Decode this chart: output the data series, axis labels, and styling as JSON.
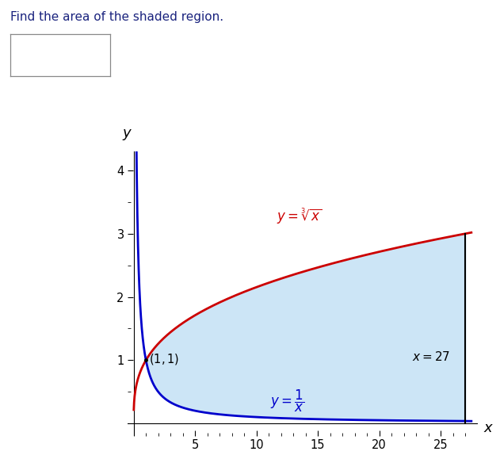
{
  "title": "Find the area of the shaded region.",
  "xlabel": "x",
  "ylabel": "y",
  "xlim": [
    -0.5,
    28.0
  ],
  "ylim": [
    -0.2,
    4.3
  ],
  "x_ticks": [
    5,
    10,
    15,
    20,
    25
  ],
  "y_ticks": [
    1,
    2,
    3,
    4
  ],
  "x_vertical": 27,
  "intersection_x": 1,
  "intersection_y": 1,
  "shaded_color": "#cce5f6",
  "curve1_color": "#cc0000",
  "curve2_color": "#0000cc",
  "vertical_color": "#000000",
  "background_color": "#ffffff",
  "title_color": "#1a237e",
  "box_color": "#888888",
  "fig_width": 6.31,
  "fig_height": 5.79,
  "dpi": 100
}
